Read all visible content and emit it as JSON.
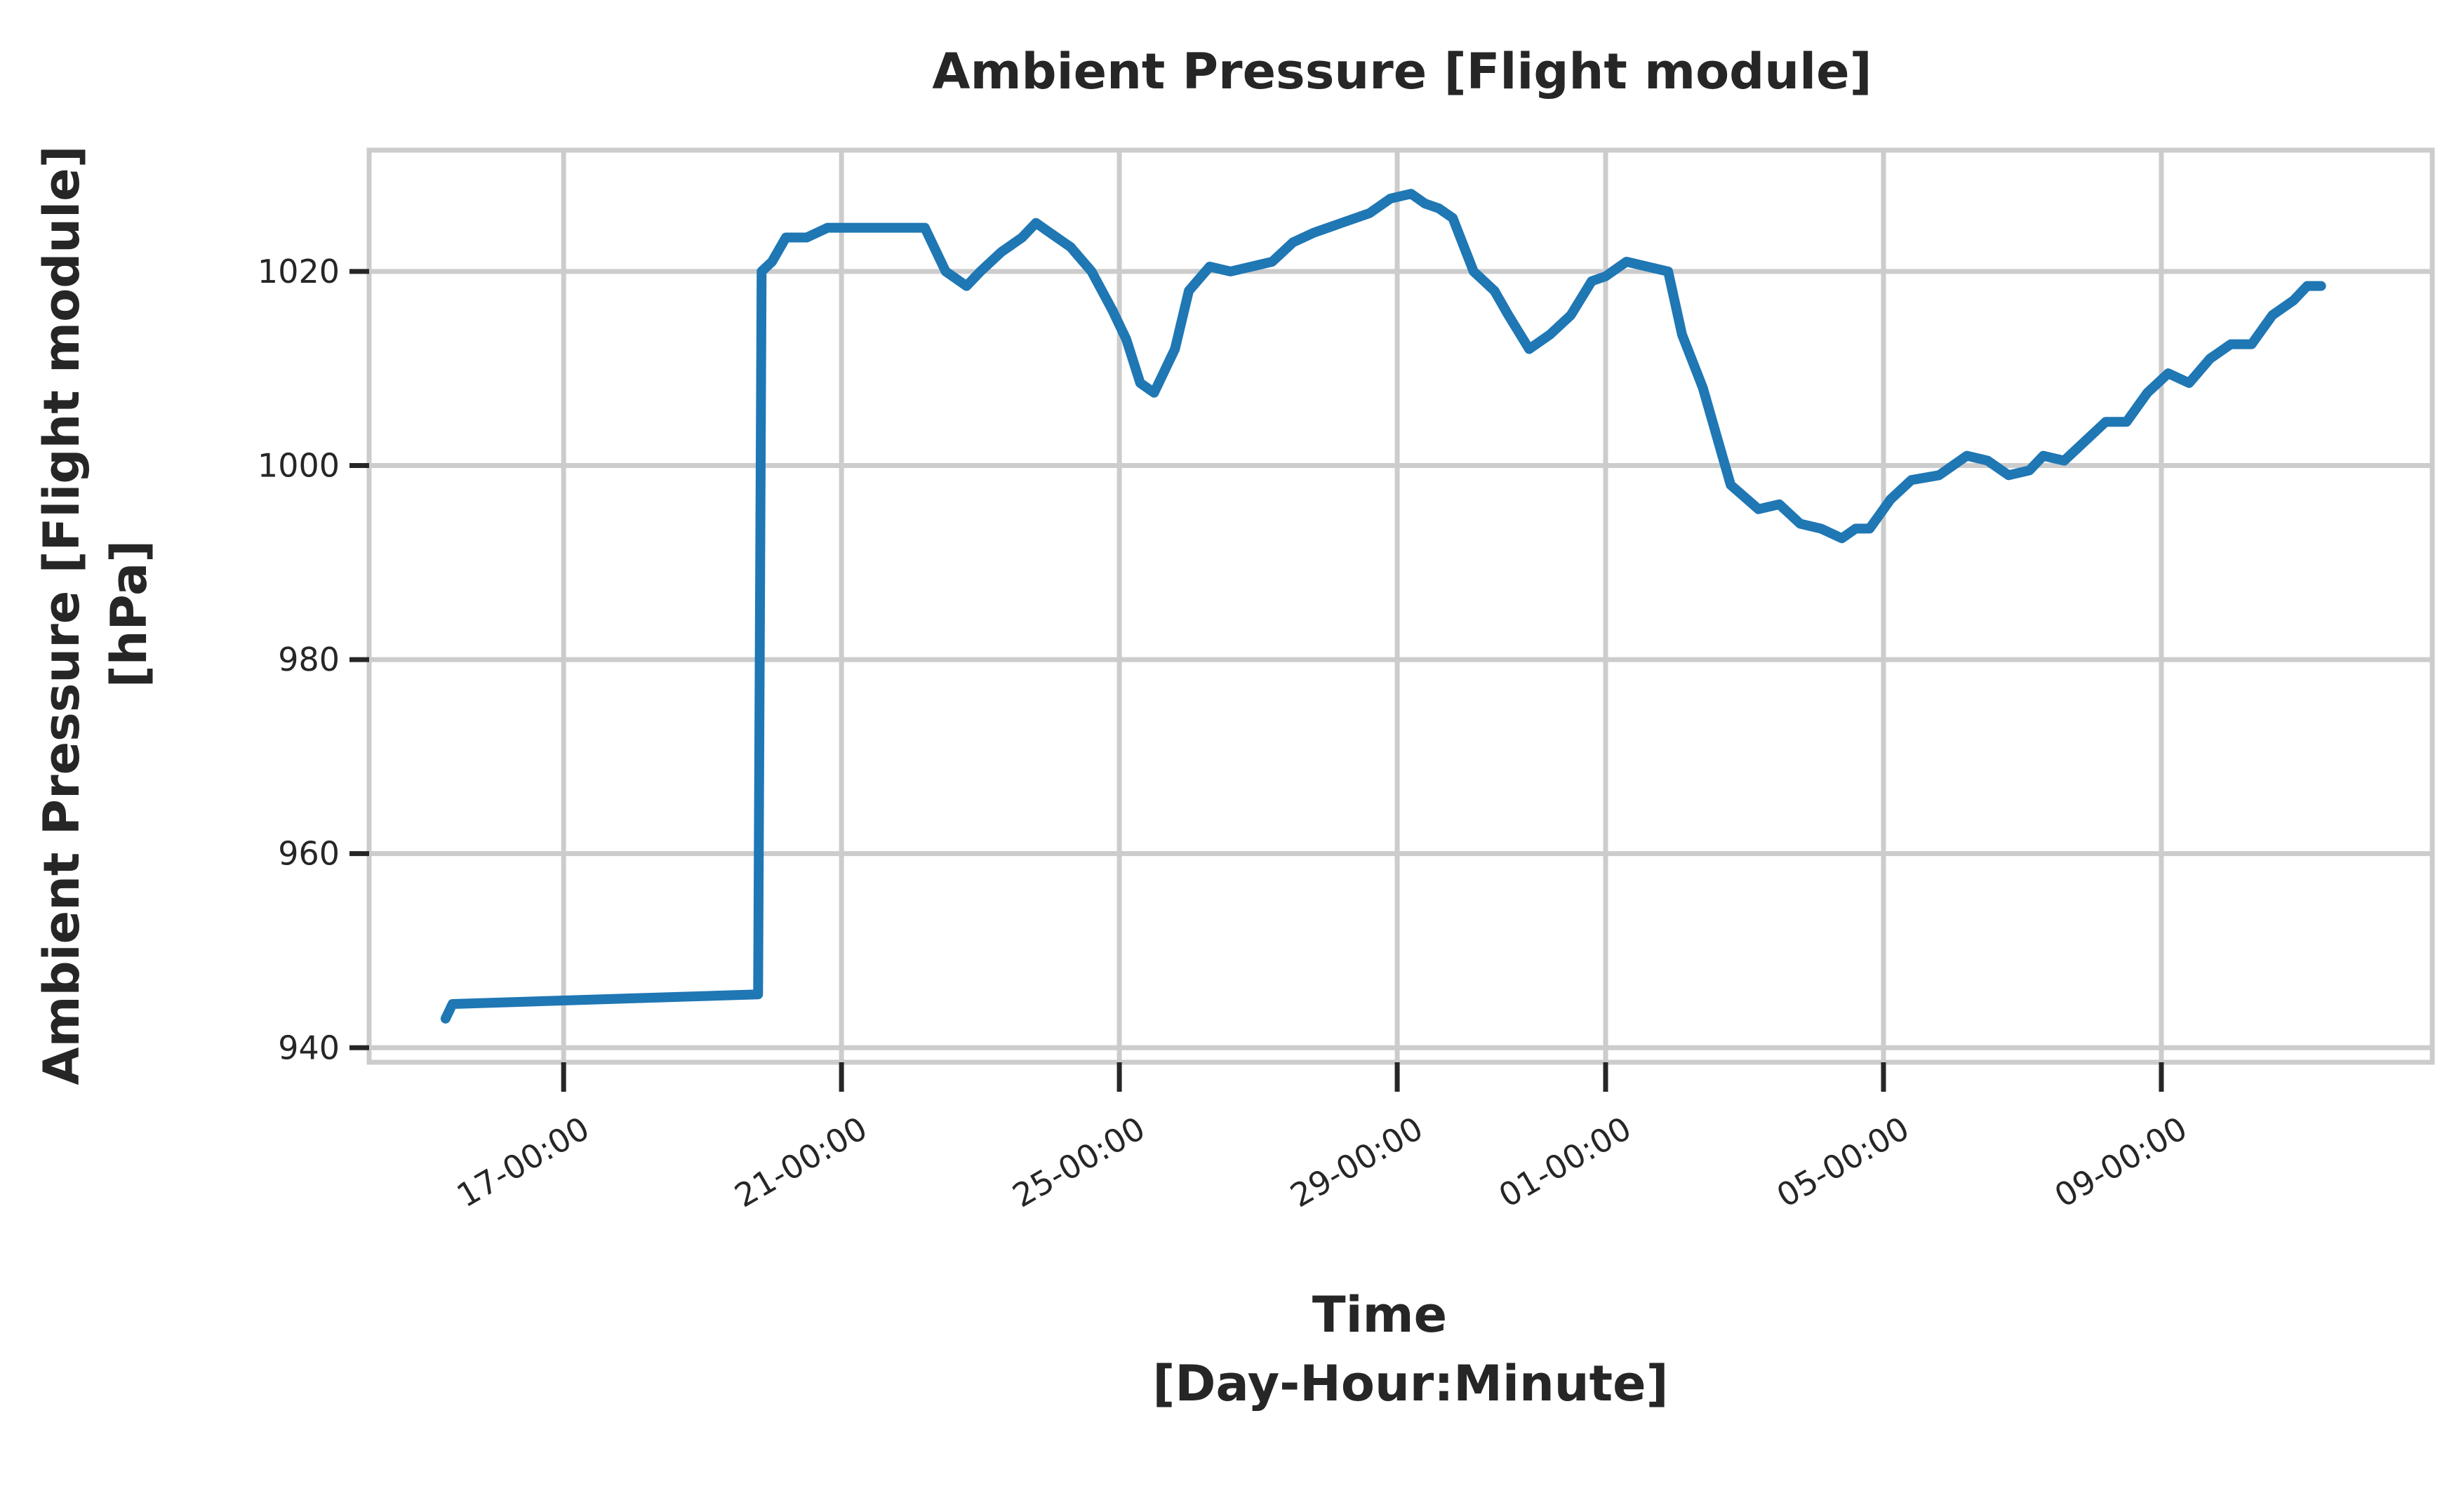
{
  "chart_data": {
    "type": "line",
    "title": "Ambient Pressure [Flight module]",
    "xlabel": [
      "Time",
      "[Day-Hour:Minute]"
    ],
    "ylabel": [
      "Ambient Pressure [Flight module]",
      "[hPa]"
    ],
    "ylim": [
      938.5,
      1032.5
    ],
    "yticks": [
      940,
      960,
      980,
      1000,
      1020
    ],
    "xticks": [
      {
        "x": 59,
        "label": "17-00:00"
      },
      {
        "x": 63,
        "label": "21-00:00"
      },
      {
        "x": 67,
        "label": "25-00:00"
      },
      {
        "x": 71,
        "label": "29-00:00"
      },
      {
        "x": 74,
        "label": "01-00:00"
      },
      {
        "x": 78,
        "label": "05-00:00"
      },
      {
        "x": 82,
        "label": "09-00:00"
      }
    ],
    "xlim": [
      56.2,
      85.9
    ],
    "grid": true,
    "colors": {
      "series": "#1f77b4",
      "grid": "#cccccc",
      "text": "#262626"
    },
    "series": [
      {
        "x": [
          57.3,
          57.4,
          61.8,
          61.85,
          62.0,
          62.2,
          62.5,
          62.8,
          63.0,
          64.2,
          64.5,
          64.6,
          64.8,
          65.0,
          65.3,
          65.6,
          65.8,
          66.0,
          66.3,
          66.6,
          66.9,
          67.1,
          67.3,
          67.5,
          67.8,
          68.0,
          68.3,
          68.6,
          68.9,
          69.2,
          69.5,
          69.8,
          70.2,
          70.6,
          70.9,
          71.2,
          71.4,
          71.6,
          71.8,
          72.1,
          72.4,
          72.6,
          72.9,
          73.2,
          73.5,
          73.8,
          74.0,
          74.3,
          74.6,
          74.9,
          75.1,
          75.4,
          75.8,
          76.2,
          76.5,
          76.8,
          77.1,
          77.4,
          77.6,
          77.8,
          78.1,
          78.4,
          78.8,
          79.2,
          79.5,
          79.8,
          80.1,
          80.3,
          80.6,
          80.9,
          81.2,
          81.5,
          81.8,
          82.1,
          82.4,
          82.7,
          83.0,
          83.3,
          83.6,
          83.9,
          84.1,
          84.3
        ],
        "y": [
          943,
          944.5,
          945.5,
          1020,
          1021,
          1023.5,
          1023.5,
          1024.5,
          1024.5,
          1024.5,
          1020,
          1019.5,
          1018.5,
          1020,
          1022,
          1023.5,
          1025,
          1024,
          1022.5,
          1020,
          1016,
          1013,
          1008.5,
          1007.5,
          1012,
          1018,
          1020.5,
          1020,
          1020.5,
          1021,
          1023,
          1024,
          1025,
          1026,
          1027.5,
          1028,
          1027,
          1026.5,
          1025.5,
          1020,
          1018,
          1015.5,
          1012,
          1013.5,
          1015.5,
          1019,
          1019.5,
          1021,
          1020.5,
          1020,
          1013.5,
          1008,
          998,
          995.5,
          996,
          994,
          993.5,
          992.5,
          993.5,
          993.5,
          996.5,
          998.5,
          999,
          1001,
          1000.5,
          999,
          999.5,
          1001,
          1000.5,
          1002.5,
          1004.5,
          1004.5,
          1007.5,
          1009.5,
          1008.5,
          1011,
          1012.5,
          1012.5,
          1015.5,
          1017,
          1018.5,
          1018.5
        ]
      }
    ]
  }
}
